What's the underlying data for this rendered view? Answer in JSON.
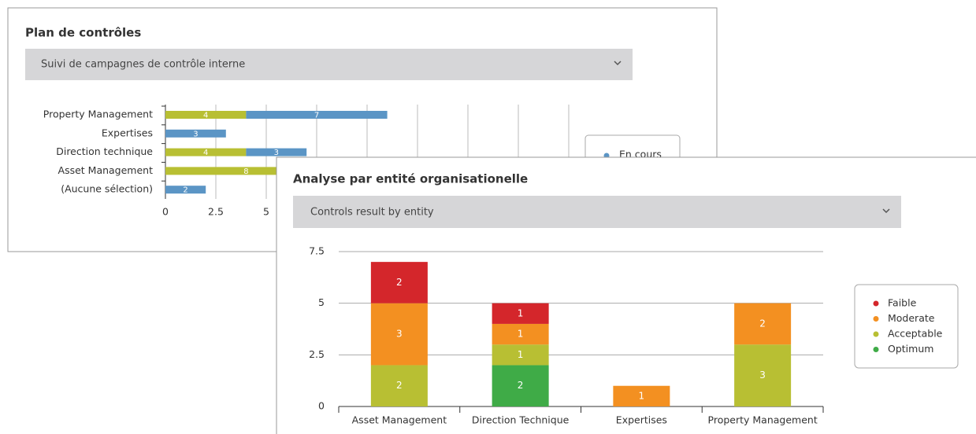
{
  "chart_data": [
    {
      "type": "hbar",
      "title": "Plan de contrôles",
      "selector": "Suivi de campagnes de contrôle interne",
      "categories": [
        "Property Management",
        "Expertises",
        "Direction technique",
        "Asset Management",
        "(Aucune sélection)"
      ],
      "series": [
        {
          "color": "#b8bf33",
          "values": [
            4,
            null,
            4,
            8,
            null
          ]
        },
        {
          "name": "En cours",
          "color": "#5b95c5",
          "values": [
            7,
            3,
            3,
            null,
            2
          ]
        }
      ],
      "xlim": [
        0,
        20
      ],
      "xticks": [
        0,
        2.5,
        5,
        7.5,
        10,
        12.5,
        15,
        17.5,
        20
      ],
      "grid": true
    },
    {
      "type": "stacked-bar",
      "title": "Analyse par entité organisationelle",
      "selector": "Controls result by entity",
      "categories": [
        "Asset Management",
        "Direction Technique",
        "Expertises",
        "Property Management"
      ],
      "series": [
        {
          "name": "Faible",
          "color": "#d4262b",
          "values": [
            2,
            1,
            null,
            null
          ]
        },
        {
          "name": "Moderate",
          "color": "#f39021",
          "values": [
            3,
            1,
            1,
            2
          ]
        },
        {
          "name": "Acceptable",
          "color": "#b8bf33",
          "values": [
            2,
            1,
            null,
            3
          ]
        },
        {
          "name": "Optimum",
          "color": "#3fab47",
          "values": [
            null,
            2,
            null,
            null
          ]
        }
      ],
      "ylim": [
        0,
        7.5
      ],
      "yticks": [
        0,
        2.5,
        5,
        7.5
      ],
      "grid": true
    }
  ]
}
